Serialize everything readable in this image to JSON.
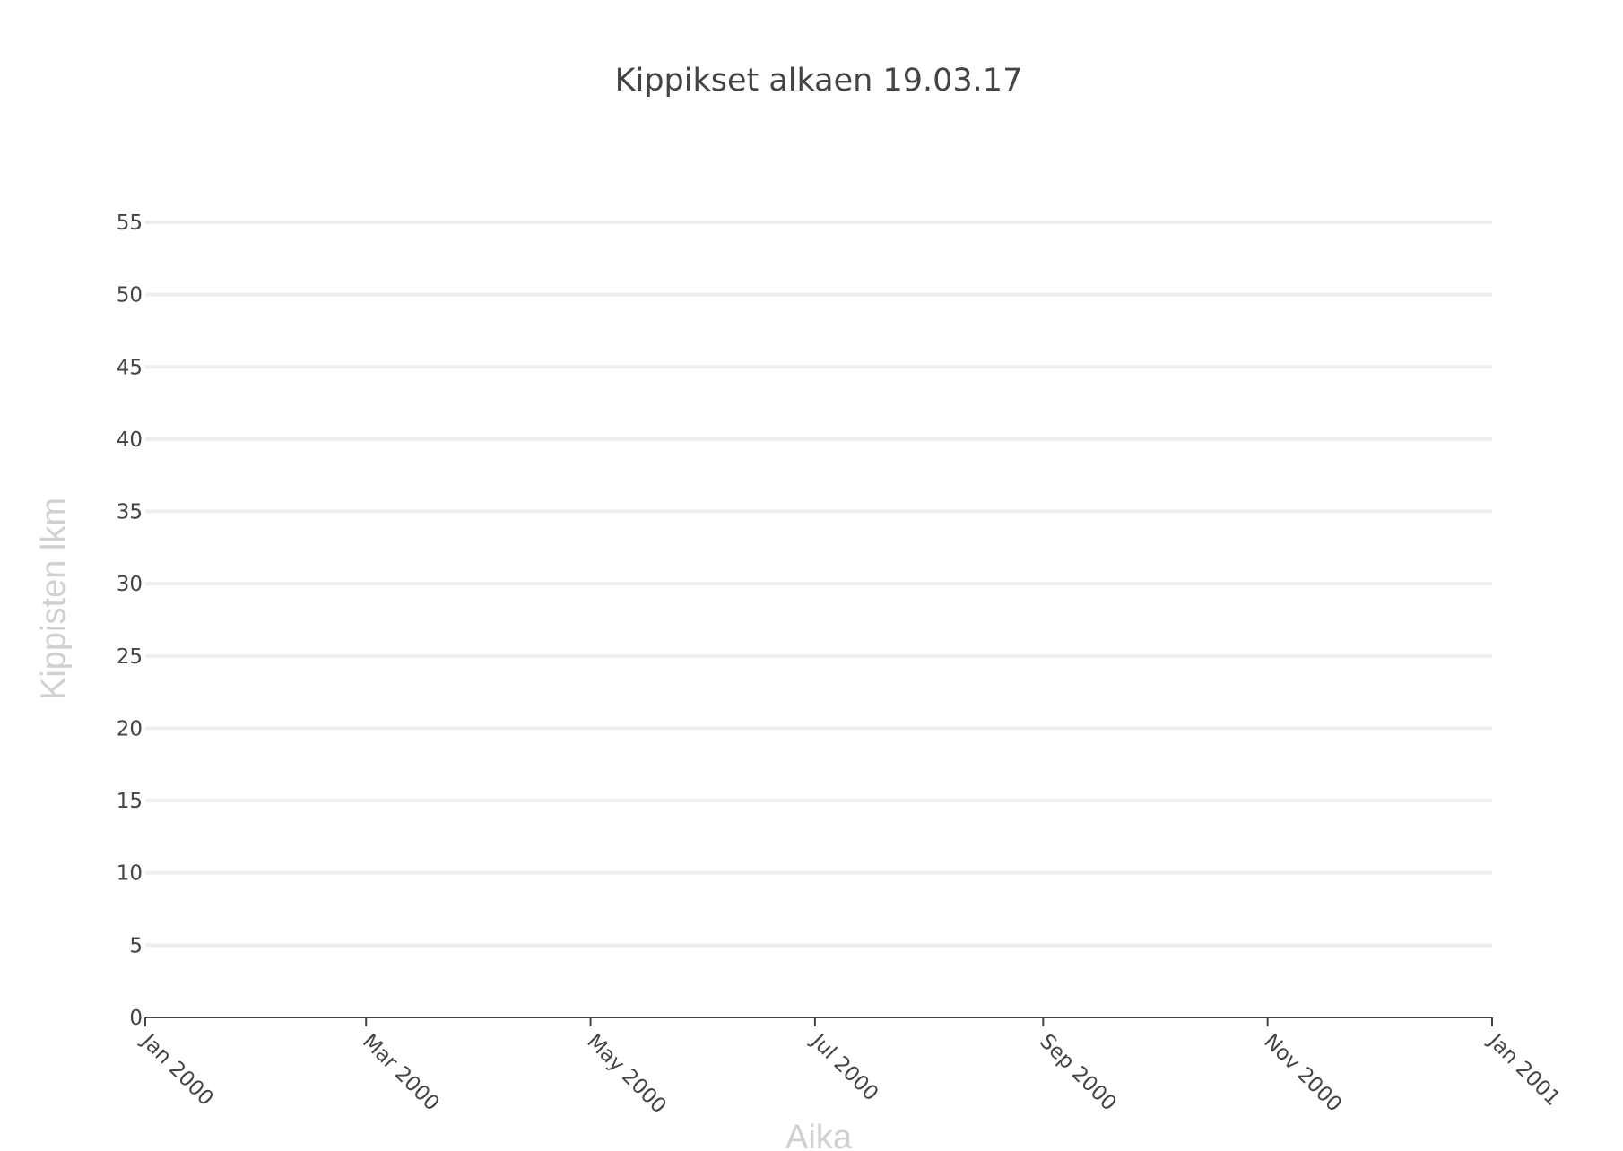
{
  "chart_data": {
    "type": "line",
    "title": "Kippikset alkaen 19.03.17",
    "xlabel": "Aika",
    "ylabel": "Kippisten lkm",
    "x_tick_labels": [
      "Jan 2000",
      "Mar 2000",
      "May 2000",
      "Jul 2000",
      "Sep 2000",
      "Nov 2000",
      "Jan 2001"
    ],
    "x_ticks": [
      "2000-01-01",
      "2000-03-01",
      "2000-05-01",
      "2000-07-01",
      "2000-09-01",
      "2000-11-01",
      "2001-01-01"
    ],
    "xlim": [
      "2000-01-01",
      "2001-01-01"
    ],
    "y_ticks": [
      0,
      5,
      10,
      15,
      20,
      25,
      30,
      35,
      40,
      45,
      50,
      55
    ],
    "ylim": [
      0,
      55
    ],
    "grid": true,
    "series": [],
    "colors": {
      "text": "#444444",
      "axis_title": "#d0d0d0",
      "grid": "#eeeeee",
      "background": "#ffffff"
    }
  }
}
